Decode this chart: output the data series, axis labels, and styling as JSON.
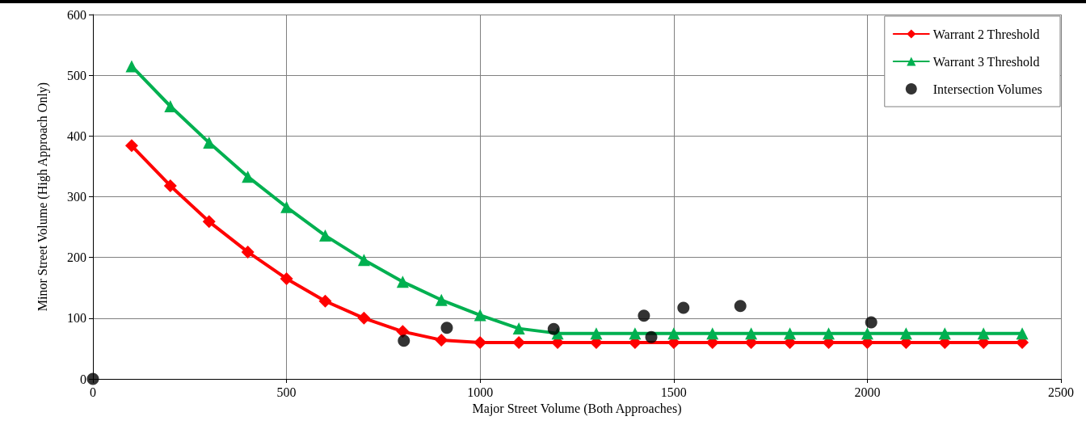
{
  "chart_data": {
    "type": "line",
    "xlabel": "Major Street Volume (Both Approaches)",
    "ylabel": "Minor Street Volume (High Approach Only)",
    "xlim": [
      0,
      2500
    ],
    "xticks": [
      0,
      500,
      1000,
      1500,
      2000,
      2500
    ],
    "ylim": [
      0,
      600
    ],
    "yticks": [
      0,
      100,
      200,
      300,
      400,
      500,
      600
    ],
    "grid": true,
    "legend": "top right",
    "line_style": "solid",
    "series": [
      {
        "name": "Warrant 2 Threshold",
        "marker": "diamond",
        "color": "#ff0000",
        "x": [
          100,
          200,
          300,
          400,
          500,
          600,
          700,
          800,
          900,
          1000,
          1100,
          1200,
          1300,
          1400,
          1500,
          1600,
          1700,
          1800,
          1900,
          2000,
          2100,
          2200,
          2300,
          2400
        ],
        "values": [
          384,
          318,
          259,
          209,
          165,
          128,
          100,
          78,
          64,
          60,
          60,
          60,
          60,
          60,
          60,
          60,
          60,
          60,
          60,
          60,
          60,
          60,
          60,
          60
        ]
      },
      {
        "name": "Warrant 3 Threshold",
        "marker": "triangle",
        "color": "#00b050",
        "x": [
          100,
          200,
          300,
          400,
          500,
          600,
          700,
          800,
          900,
          1000,
          1100,
          1200,
          1300,
          1400,
          1500,
          1600,
          1700,
          1800,
          1900,
          2000,
          2100,
          2200,
          2300,
          2400
        ],
        "values": [
          515,
          449,
          389,
          333,
          283,
          236,
          196,
          160,
          130,
          105,
          83,
          75,
          75,
          75,
          75,
          75,
          75,
          75,
          75,
          75,
          75,
          75,
          75,
          75
        ]
      },
      {
        "name": "Intersection Volumes",
        "type": "scatter",
        "marker": "circle",
        "color": "#000000",
        "x": [
          0,
          803,
          914,
          1190,
          1423,
          1442,
          1525,
          1672,
          2010
        ],
        "values": [
          0,
          63,
          84,
          82,
          104,
          69,
          117,
          120,
          93
        ]
      }
    ]
  }
}
